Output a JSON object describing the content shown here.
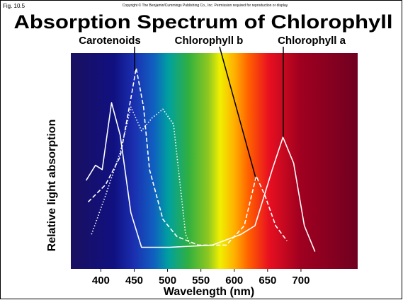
{
  "fig_label": "Fig. 10.5",
  "copyright": "Copyright © The Benjamin/Cummings Publishing Co., Inc. Permission required for reproduction or display.",
  "chart_data": {
    "type": "line",
    "title": "Absorption Spectrum of Chlorophyll",
    "x_label": "Wavelength (nm)",
    "y_label": "Relative light absorption",
    "xlim": [
      355,
      785
    ],
    "xticks": [
      400,
      450,
      500,
      550,
      600,
      650,
      700
    ],
    "ylim": [
      0,
      100
    ],
    "series": [
      {
        "name": "Carotenoids",
        "color": "#ffffff",
        "style": "dotted",
        "x": [
          386,
          407,
          429,
          445,
          461,
          477,
          493,
          509,
          527,
          535
        ],
        "values": [
          16,
          34,
          54,
          75,
          64,
          70,
          74,
          67,
          16,
          11
        ]
      },
      {
        "name": "Chlorophyll b",
        "color": "#ffffff",
        "style": "dashed",
        "x": [
          381,
          407,
          429,
          445,
          453,
          464,
          473,
          493,
          514,
          546,
          588,
          615,
          633,
          646,
          662,
          679
        ],
        "values": [
          31,
          39,
          52,
          79,
          93,
          75,
          46,
          23,
          15,
          11,
          11,
          20,
          43,
          34,
          20,
          13
        ]
      },
      {
        "name": "Chlorophyll a",
        "color": "#ffffff",
        "style": "solid",
        "x": [
          378,
          392,
          402,
          416,
          429,
          445,
          461,
          503,
          567,
          610,
          631,
          657,
          673,
          689,
          705,
          721
        ],
        "values": [
          41,
          48,
          46,
          77,
          62,
          26,
          10,
          10,
          11,
          16,
          20,
          46,
          61,
          49,
          20,
          8
        ]
      }
    ]
  }
}
